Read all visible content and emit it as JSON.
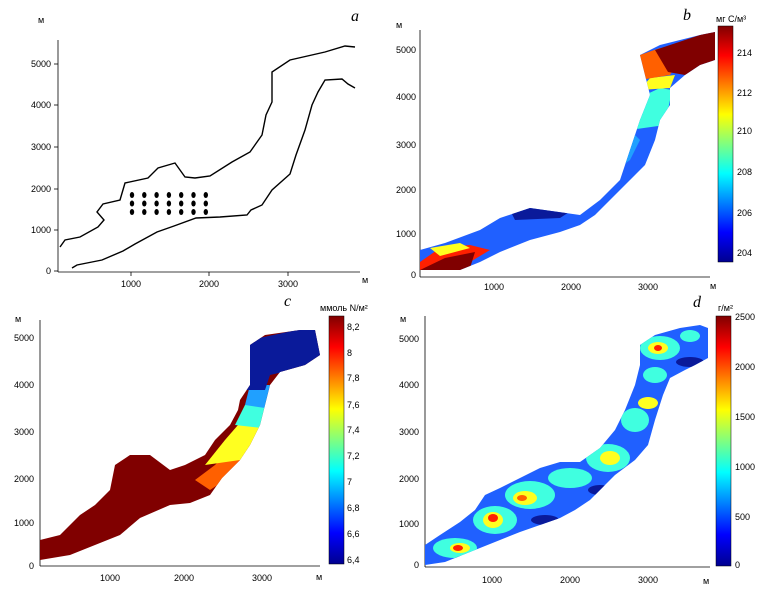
{
  "panels": [
    {
      "label": "a",
      "axis_unit_y": "м",
      "axis_unit_x": "м",
      "x_ticks": [
        "1000",
        "2000",
        "3000"
      ],
      "y_ticks": [
        "0",
        "1000",
        "2000",
        "3000",
        "4000",
        "5000"
      ]
    },
    {
      "label": "b",
      "axis_unit_y": "м",
      "axis_unit_x": "м",
      "x_ticks": [
        "1000",
        "2000",
        "3000"
      ],
      "y_ticks": [
        "0",
        "1000",
        "2000",
        "3000",
        "4000",
        "5000"
      ],
      "colorbar_unit": "мг С/м³",
      "colorbar_ticks": [
        "204",
        "206",
        "208",
        "210",
        "212",
        "214"
      ]
    },
    {
      "label": "c",
      "axis_unit_y": "м",
      "axis_unit_x": "м",
      "x_ticks": [
        "1000",
        "2000",
        "3000"
      ],
      "y_ticks": [
        "0",
        "1000",
        "2000",
        "3000",
        "4000",
        "5000"
      ],
      "colorbar_unit": "ммоль N/м²",
      "colorbar_ticks": [
        "6,4",
        "6,6",
        "6,8",
        "7",
        "7,2",
        "7,4",
        "7,6",
        "7,8",
        "8",
        "8,2"
      ]
    },
    {
      "label": "d",
      "axis_unit_y": "м",
      "axis_unit_x": "м",
      "x_ticks": [
        "1000",
        "2000",
        "3000"
      ],
      "y_ticks": [
        "0",
        "1000",
        "2000",
        "3000",
        "4000",
        "5000"
      ],
      "colorbar_unit": "г/м²",
      "colorbar_ticks": [
        "0",
        "500",
        "1000",
        "1500",
        "2000",
        "2500"
      ]
    }
  ],
  "colors": {
    "dark_red": "#800000",
    "red": "#ff2000",
    "orange": "#ff8000",
    "yellow": "#ffff20",
    "cyan": "#40ffe0",
    "light_blue": "#20a0ff",
    "blue": "#2060ff",
    "dark_blue": "#0000a0"
  }
}
